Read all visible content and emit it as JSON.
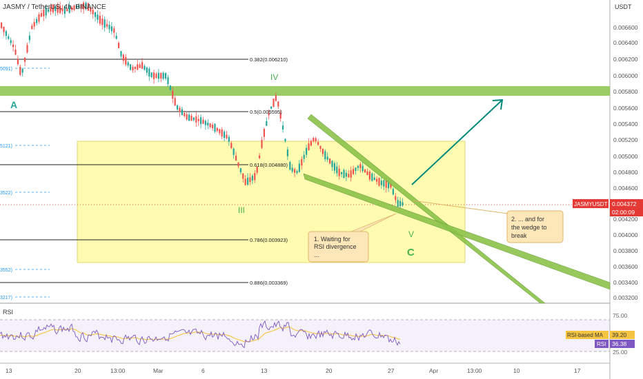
{
  "header": {
    "title": "JASMY / TetherUS, 4h, BINANCE"
  },
  "price_axis": {
    "currency": "USDT",
    "ticks": [
      "0.006600",
      "0.006400",
      "0.006200",
      "0.006000",
      "0.005800",
      "0.005600",
      "0.005400",
      "0.005200",
      "0.005000",
      "0.004800",
      "0.004600",
      "0.004200",
      "0.004000",
      "0.003800",
      "0.003600",
      "0.003400",
      "0.003200"
    ],
    "symbol_badge": "JASMYUSDT",
    "last_price": "0.004372",
    "countdown": "02:00:09",
    "colors": {
      "badge": "#e53935"
    }
  },
  "time_axis": {
    "ticks": [
      "13",
      "20",
      "13:00",
      "Mar",
      "6",
      "13",
      "20",
      "27",
      "Apr",
      "13:00",
      "10",
      "17"
    ]
  },
  "fib_levels": [
    {
      "label": "0.382(0.006210)"
    },
    {
      "label": "0.5(0.005595)"
    },
    {
      "label": "0.618(0.004880)"
    },
    {
      "label": "0.786(0.003923)"
    },
    {
      "label": "0.886(0.003369)"
    }
  ],
  "left_edge_labels": [
    "5091)",
    "5121)",
    "3522)",
    "3552)",
    "3217)"
  ],
  "wave_labels": {
    "a": "A",
    "iii": "III",
    "iv": "IV",
    "v": "V",
    "c": "C"
  },
  "notes": {
    "note1": [
      "1. Waiting for",
      "RSI divergence",
      "..."
    ],
    "note2": [
      "2. ... and for",
      "the wedge to",
      "break"
    ]
  },
  "rsi": {
    "title": "RSI",
    "ticks": [
      "75.00",
      "25.00"
    ],
    "ma_label": "RSI-based MA",
    "ma_value": "39.20",
    "rsi_label": "RSI",
    "rsi_value": "36.38",
    "colors": {
      "rsi_line": "#7e57c2",
      "ma_line": "#f5c542"
    }
  },
  "colors": {
    "up": "#26a69a",
    "down": "#ef5350",
    "zone": "#8bc34a",
    "arrow": "#00897b",
    "box": "#fffba8"
  }
}
